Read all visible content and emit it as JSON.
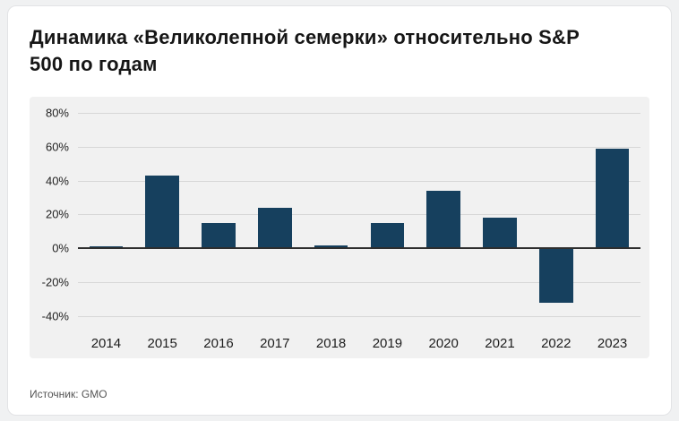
{
  "title": "Динамика «Великолепной семерки» относительно S&P 500 по годам",
  "source": "Источник: GMO",
  "colors": {
    "bar": "#16405e",
    "grid": "#d7d7d7",
    "zero_line": "#2e2e2e",
    "plot_bg": "#f1f1f1",
    "card_bg": "#ffffff",
    "page_bg": "#f0f1f2"
  },
  "chart_data": {
    "type": "bar",
    "title": "Динамика «Великолепной семерки» относительно S&P 500 по годам",
    "categories": [
      "2014",
      "2015",
      "2016",
      "2017",
      "2018",
      "2019",
      "2020",
      "2021",
      "2022",
      "2023"
    ],
    "values": [
      1,
      43,
      15,
      24,
      2,
      15,
      34,
      18,
      -32,
      59
    ],
    "xlabel": "",
    "ylabel": "",
    "ylim": [
      -47,
      85
    ],
    "yticks": [
      -40,
      -20,
      0,
      20,
      40,
      60,
      80
    ],
    "ytick_suffix": "%",
    "grid": true,
    "legend": false,
    "source": "GMO"
  }
}
